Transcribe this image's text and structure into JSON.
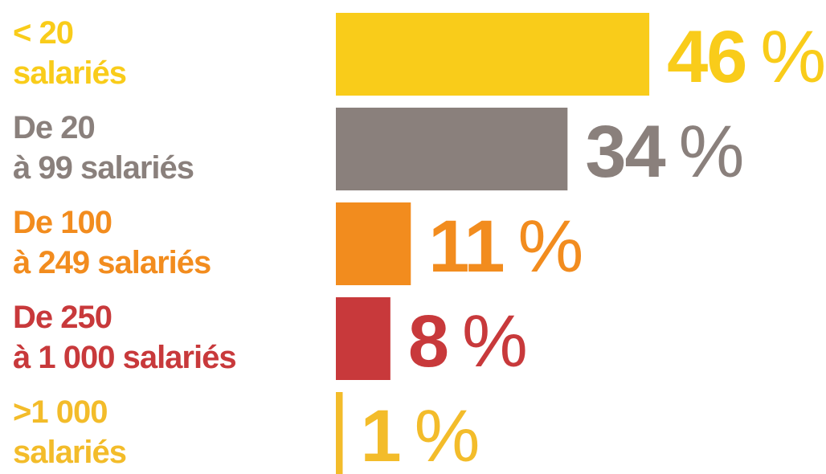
{
  "chart_data": {
    "type": "bar",
    "orientation": "horizontal",
    "categories": [
      [
        "< 20",
        "salariés"
      ],
      [
        "De 20",
        "à 99 salariés"
      ],
      [
        "De 100",
        "à 249 salariés"
      ],
      [
        "De 250",
        "à 1 000 salariés"
      ],
      [
        ">1 000",
        "salariés"
      ]
    ],
    "values": [
      46,
      34,
      11,
      8,
      1
    ],
    "value_labels": [
      "46",
      "34",
      "11",
      "8",
      "1"
    ],
    "unit": "%",
    "colors": [
      "#f9cc1a",
      "#8a807c",
      "#f28c1e",
      "#c8393b",
      "#f3bc2a"
    ],
    "grid": false,
    "legend": "none",
    "title": "",
    "xlabel": "",
    "ylabel": ""
  }
}
